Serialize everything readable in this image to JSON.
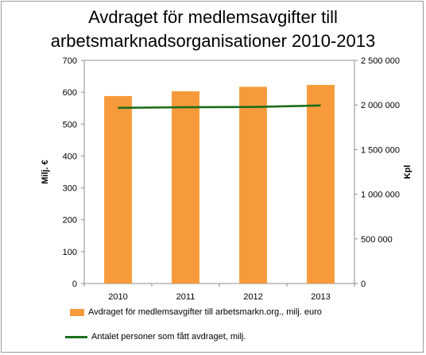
{
  "chart_data": {
    "type": "bar",
    "title": [
      "Avdraget för medlemsavgifter till",
      "arbetsmarknadsorganisationer  2010-2013"
    ],
    "categories": [
      "2010",
      "2011",
      "2012",
      "2013"
    ],
    "series": [
      {
        "name": "Avdraget för medlemsavgifter till arbetsmarkn.org., milj. euro",
        "type": "bar",
        "axis": "left",
        "values": [
          588,
          603,
          617,
          623
        ],
        "color": "#f79a3b"
      },
      {
        "name": "Antalet personer som fått avdraget, milj.",
        "type": "line",
        "axis": "right",
        "values": [
          1968000,
          1975000,
          1978000,
          1995000
        ],
        "color": "#1b6e1b"
      }
    ],
    "ylabel": "Milj. €",
    "y2label": "Kpl",
    "ylim": [
      0,
      700
    ],
    "y2lim": [
      0,
      2500000
    ],
    "yticks": [
      "0",
      "100",
      "200",
      "300",
      "400",
      "500",
      "600",
      "700"
    ],
    "y2ticks": [
      "0",
      "500 000",
      "1 000 000",
      "1 500 000",
      "2 000 000",
      "2 500 000"
    ],
    "grid": false,
    "legend_position": "bottom"
  }
}
